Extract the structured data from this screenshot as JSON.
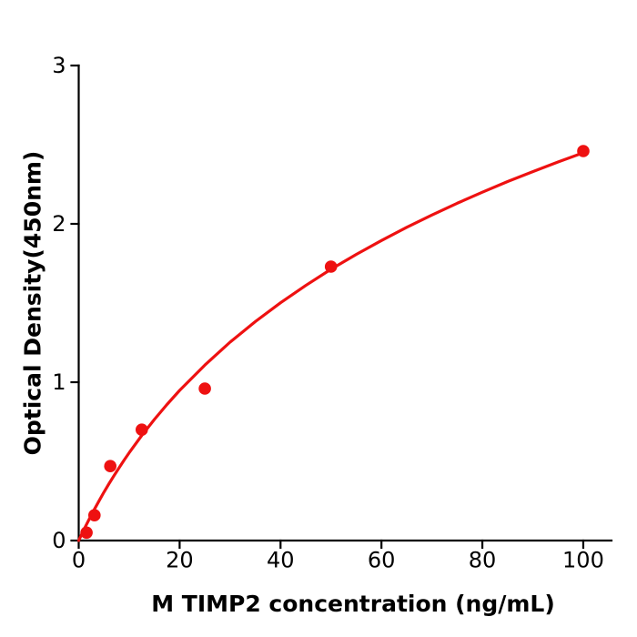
{
  "figure": {
    "background": "#ffffff"
  },
  "chart_data": {
    "type": "scatter",
    "title": "",
    "xlabel": "M  TIMP2 concentration (ng/mL)",
    "ylabel": "Optical Density(450nm)",
    "xlim": [
      0,
      105.6
    ],
    "ylim": [
      0,
      3
    ],
    "x_ticks": [
      0,
      20,
      40,
      60,
      80,
      100
    ],
    "y_ticks": [
      0,
      1,
      2,
      3
    ],
    "grid": false,
    "legend_position": "none",
    "axis_color": "#000000",
    "marker_color": "#ee1111",
    "line_color": "#ee1111",
    "points": [
      {
        "x": 1.56,
        "y": 0.05
      },
      {
        "x": 3.12,
        "y": 0.16
      },
      {
        "x": 6.25,
        "y": 0.47
      },
      {
        "x": 12.5,
        "y": 0.7
      },
      {
        "x": 25,
        "y": 0.96
      },
      {
        "x": 50,
        "y": 1.73
      },
      {
        "x": 100,
        "y": 2.46
      }
    ],
    "fit_curve": {
      "model": "OD = a * ln(1 + c/b)",
      "a": 1.367,
      "b": 20,
      "samples": [
        [
          0,
          0
        ],
        [
          0.5,
          0.034
        ],
        [
          1,
          0.067
        ],
        [
          2,
          0.13
        ],
        [
          3,
          0.191
        ],
        [
          4,
          0.249
        ],
        [
          5,
          0.305
        ],
        [
          6,
          0.359
        ],
        [
          7,
          0.41
        ],
        [
          8,
          0.46
        ],
        [
          9,
          0.508
        ],
        [
          10,
          0.554
        ],
        [
          12.5,
          0.664
        ],
        [
          15,
          0.765
        ],
        [
          17.5,
          0.859
        ],
        [
          20,
          0.948
        ],
        [
          25,
          1.108
        ],
        [
          30,
          1.253
        ],
        [
          35,
          1.383
        ],
        [
          40,
          1.502
        ],
        [
          45,
          1.611
        ],
        [
          50,
          1.713
        ],
        [
          55,
          1.807
        ],
        [
          60,
          1.895
        ],
        [
          65,
          1.978
        ],
        [
          70,
          2.056
        ],
        [
          75,
          2.13
        ],
        [
          80,
          2.2
        ],
        [
          85,
          2.267
        ],
        [
          90,
          2.33
        ],
        [
          95,
          2.391
        ],
        [
          100,
          2.449
        ]
      ]
    }
  }
}
